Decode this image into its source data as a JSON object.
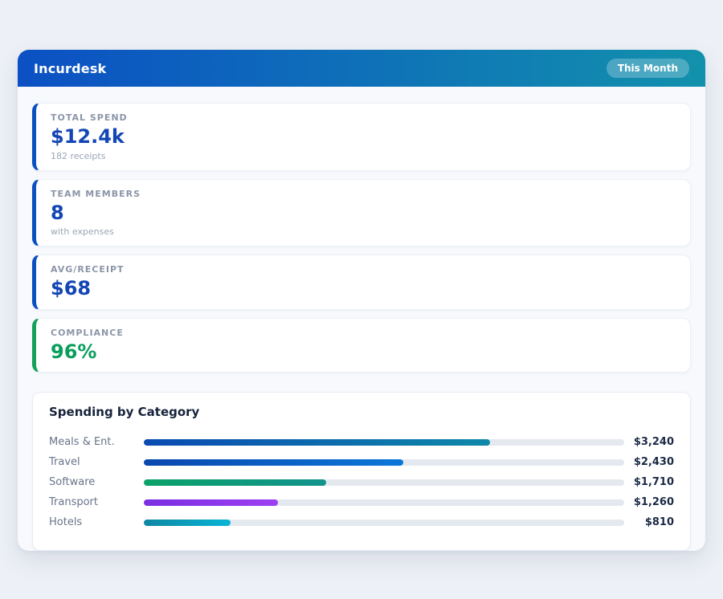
{
  "page": {
    "background": "#edf0f6",
    "panel_background": "#f7f9fc"
  },
  "header": {
    "title": "Incurdesk",
    "badge": "This Month",
    "gradient_from": "#0b50c4",
    "gradient_to": "#1291ac"
  },
  "stats": [
    {
      "label": "TOTAL SPEND",
      "value": "$12.4k",
      "sub": "182 receipts",
      "accent": "#0b4fc0",
      "value_color": "#1346b4"
    },
    {
      "label": "TEAM MEMBERS",
      "value": "8",
      "sub": "with expenses",
      "accent": "#0b4fc0",
      "value_color": "#1346b4"
    },
    {
      "label": "AVG/RECEIPT",
      "value": "$68",
      "sub": "",
      "accent": "#0b4fc0",
      "value_color": "#1346b4"
    },
    {
      "label": "COMPLIANCE",
      "value": "96%",
      "sub": "",
      "accent": "#16a05a",
      "value_color": "#0a9e5c"
    }
  ],
  "chart_data": {
    "type": "bar",
    "orientation": "horizontal",
    "title": "Spending by Category",
    "categories": [
      "Meals & Ent.",
      "Travel",
      "Software",
      "Transport",
      "Hotels"
    ],
    "values": [
      3240,
      2430,
      1710,
      1260,
      810
    ],
    "value_labels": [
      "$3,240",
      "$2,430",
      "$1,710",
      "$1,260",
      "$810"
    ],
    "axis_max": 4500,
    "grid": false,
    "track_color": "#e4e9f0",
    "bar_gradients": [
      [
        "#0a4ab2",
        "#0e88a8"
      ],
      [
        "#0a47ae",
        "#0b77d8"
      ],
      [
        "#0ba168",
        "#12938c"
      ],
      [
        "#7b2ee2",
        "#9d3ff2"
      ],
      [
        "#0e87a2",
        "#0ab4d6"
      ]
    ]
  }
}
